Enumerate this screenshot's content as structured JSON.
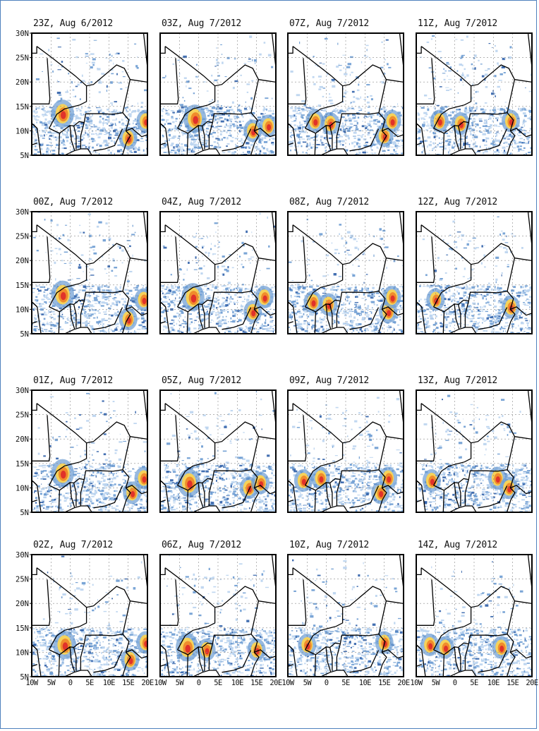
{
  "figure": {
    "panel_titles": [
      [
        "23Z, Aug 6/2012",
        "03Z, Aug 7/2012",
        "07Z, Aug 7/2012",
        "11Z, Aug 7/2012"
      ],
      [
        "00Z, Aug 7/2012",
        "04Z, Aug 7/2012",
        "08Z, Aug 7/2012",
        "12Z, Aug 7/2012"
      ],
      [
        "01Z, Aug 7/2012",
        "05Z, Aug 7/2012",
        "09Z, Aug 7/2012",
        "13Z, Aug 7/2012"
      ],
      [
        "02Z, Aug 7/2012",
        "06Z, Aug 7/2012",
        "10Z, Aug 7/2012",
        "14Z, Aug 7/2012"
      ]
    ],
    "lat_labels": [
      "30N",
      "25N",
      "20N",
      "15N",
      "10N",
      "5N"
    ],
    "lon_labels": [
      "10W",
      "5W",
      "0",
      "5E",
      "10E",
      "15E",
      "20E"
    ],
    "lon_labels_display": [
      "10W",
      "5W",
      "0",
      "5E",
      "10E",
      "15E",
      "20E"
    ],
    "colors": {
      "frame_border": "#4f81bd",
      "light_blue": "#b9d3ee",
      "mid_blue": "#6b9bd2",
      "dark_blue": "#2f5fa8",
      "yellow": "#f5d25a",
      "orange": "#f08c2c",
      "red": "#e0322a",
      "borders": "#000000"
    }
  }
}
